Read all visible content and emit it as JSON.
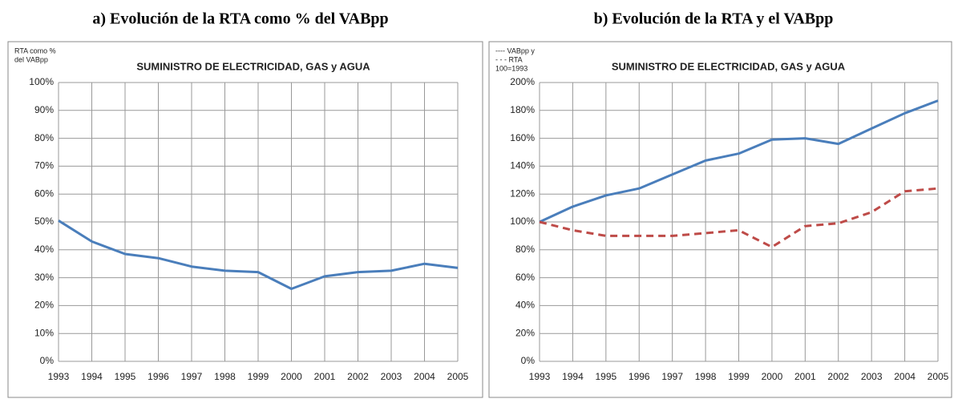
{
  "chart_data": [
    {
      "type": "line",
      "caption": "a) Evolución de la RTA como % del VABpp",
      "title": "SUMINISTRO DE ELECTRICIDAD, GAS y AGUA",
      "ylabel": [
        "RTA como %",
        "del VABpp"
      ],
      "categories": [
        "1993",
        "1994",
        "1995",
        "1996",
        "1997",
        "1998",
        "1999",
        "2000",
        "2001",
        "2002",
        "2003",
        "2004",
        "2005"
      ],
      "series": [
        {
          "color": "#4a7ebb",
          "dash": false,
          "values": [
            50.5,
            43,
            38.5,
            37,
            34,
            32.5,
            32,
            26,
            30.5,
            32,
            32.5,
            35,
            33.5
          ]
        }
      ],
      "ylim": [
        0,
        100
      ],
      "yticks": [
        {
          "value": 0,
          "label": "0%"
        },
        {
          "value": 10,
          "label": "10%"
        },
        {
          "value": 20,
          "label": "20%"
        },
        {
          "value": 30,
          "label": "30%"
        },
        {
          "value": 40,
          "label": "40%"
        },
        {
          "value": 50,
          "label": "50%"
        },
        {
          "value": 60,
          "label": "60%"
        },
        {
          "value": 70,
          "label": "70%"
        },
        {
          "value": 80,
          "label": "80%"
        },
        {
          "value": 90,
          "label": "90%"
        },
        {
          "value": 100,
          "label": "100%"
        }
      ],
      "grid": true
    },
    {
      "type": "line",
      "caption": "b) Evolución de la RTA y el VABpp",
      "title": "SUMINISTRO DE ELECTRICIDAD, GAS y AGUA",
      "ylabel": [
        "---- VABpp y",
        "- - - RTA",
        "100=1993"
      ],
      "categories": [
        "1993",
        "1994",
        "1995",
        "1996",
        "1997",
        "1998",
        "1999",
        "2000",
        "2001",
        "2002",
        "2003",
        "2004",
        "2005"
      ],
      "series": [
        {
          "color": "#4a7ebb",
          "dash": false,
          "values": [
            100,
            111,
            119,
            124,
            134,
            144,
            149,
            159,
            160,
            156,
            167,
            178,
            187
          ]
        },
        {
          "color": "#be4b48",
          "dash": true,
          "values": [
            100,
            94,
            90,
            90,
            90,
            92,
            94,
            82,
            97,
            99,
            107,
            122,
            124
          ]
        }
      ],
      "ylim": [
        0,
        200
      ],
      "yticks": [
        {
          "value": 0,
          "label": "0%"
        },
        {
          "value": 20,
          "label": "20%"
        },
        {
          "value": 40,
          "label": "40%"
        },
        {
          "value": 60,
          "label": "60%"
        },
        {
          "value": 80,
          "label": "80%"
        },
        {
          "value": 100,
          "label": "100%"
        },
        {
          "value": 120,
          "label": "120%"
        },
        {
          "value": 140,
          "label": "140%"
        },
        {
          "value": 160,
          "label": "160%"
        },
        {
          "value": 180,
          "label": "180%"
        },
        {
          "value": 200,
          "label": "200%"
        }
      ],
      "grid": true
    }
  ]
}
